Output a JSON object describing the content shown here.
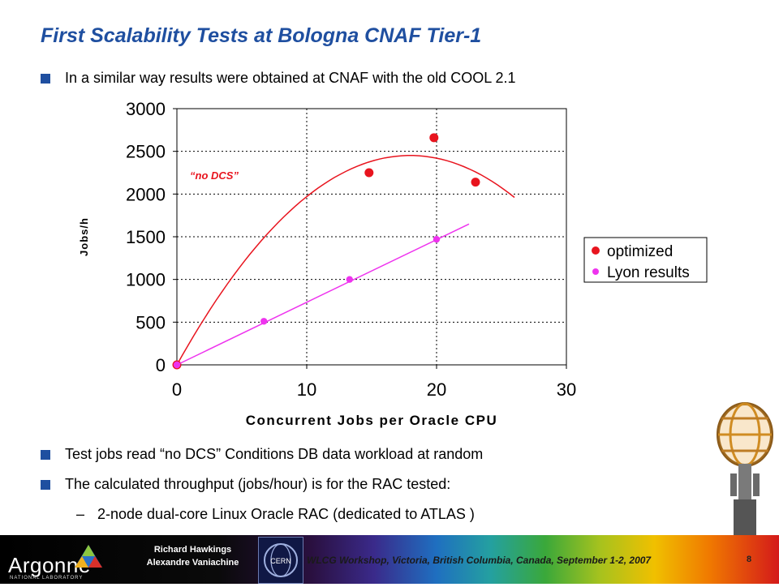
{
  "slide": {
    "title": "First Scalability Tests at Bologna CNAF Tier-1",
    "intro_bullet": "In a similar way results were obtained at CNAF with the old COOL 2.1",
    "bullets": [
      "Test jobs read “no DCS” Conditions DB data workload at random",
      "The calculated throughput (jobs/hour) is for the RAC tested:"
    ],
    "sub_bullet_dash": "–",
    "sub_bullet": "2-node dual-core Linux Oracle RAC (dedicated to ATLAS )"
  },
  "chart_data": {
    "type": "scatter",
    "xlabel": "Concurrent Jobs per Oracle CPU",
    "ylabel": "Jobs/h",
    "xlim": [
      0,
      30
    ],
    "ylim": [
      0,
      3000
    ],
    "xticks": [
      0,
      10,
      20,
      30
    ],
    "yticks": [
      0,
      500,
      1000,
      1500,
      2000,
      2500,
      3000
    ],
    "grid": "dashed vertical and horizontal",
    "legend_position": "right",
    "annotation": "“no DCS”",
    "series": [
      {
        "name": "optimized",
        "color": "#e8141e",
        "x": [
          0,
          14.8,
          19.8,
          23
        ],
        "y": [
          0,
          2250,
          2660,
          2140
        ],
        "trendline": {
          "type": "quadratic",
          "x_range": [
            0,
            26
          ],
          "a": -7.6,
          "b": 273,
          "c": 0
        }
      },
      {
        "name": "Lyon results",
        "color": "#ee33ee",
        "x": [
          0,
          6.7,
          13.3,
          20
        ],
        "y": [
          0,
          510,
          1000,
          1470
        ],
        "trendline": {
          "type": "linear",
          "x_range": [
            0,
            22.5
          ],
          "slope": 73.3,
          "intercept": 0
        }
      }
    ]
  },
  "footer": {
    "org": "Argonne",
    "org_sub": "NATIONAL LABORATORY",
    "authors": [
      "Richard Hawkings",
      "Alexandre Vaniachine"
    ],
    "cern_label": "CERN",
    "workshop": "WLCG Workshop, Victoria, British Columbia, Canada, September 1-2, 2007",
    "page": "8"
  }
}
